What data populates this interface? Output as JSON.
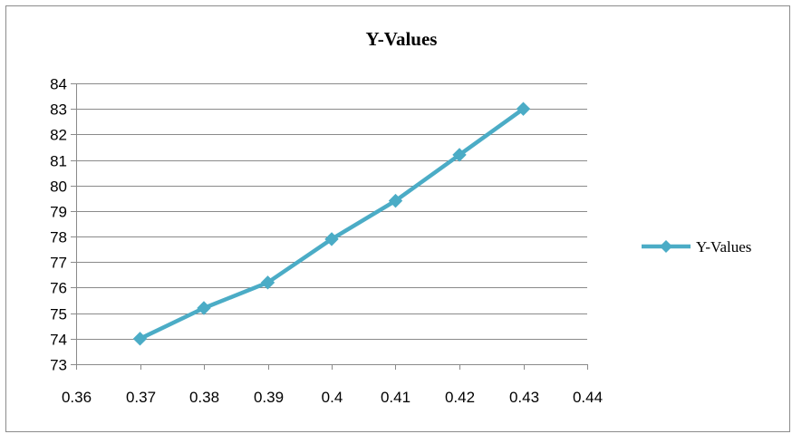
{
  "chart_data": {
    "type": "line",
    "title": "Y-Values",
    "xlabel": "",
    "ylabel": "",
    "x": [
      0.37,
      0.38,
      0.39,
      0.4,
      0.41,
      0.42,
      0.43
    ],
    "series": [
      {
        "name": "Y-Values",
        "values": [
          74.0,
          75.2,
          76.2,
          77.9,
          79.4,
          81.2,
          83.0
        ],
        "color": "#4bacc6",
        "marker": "diamond"
      }
    ],
    "xlim": [
      0.36,
      0.44
    ],
    "ylim": [
      73,
      84
    ],
    "x_ticks": [
      "0.36",
      "0.37",
      "0.38",
      "0.39",
      "0.4",
      "0.41",
      "0.42",
      "0.43",
      "0.44"
    ],
    "y_ticks": [
      "73",
      "74",
      "75",
      "76",
      "77",
      "78",
      "79",
      "80",
      "81",
      "82",
      "83",
      "84"
    ],
    "grid": "horizontal",
    "legend": "right"
  }
}
